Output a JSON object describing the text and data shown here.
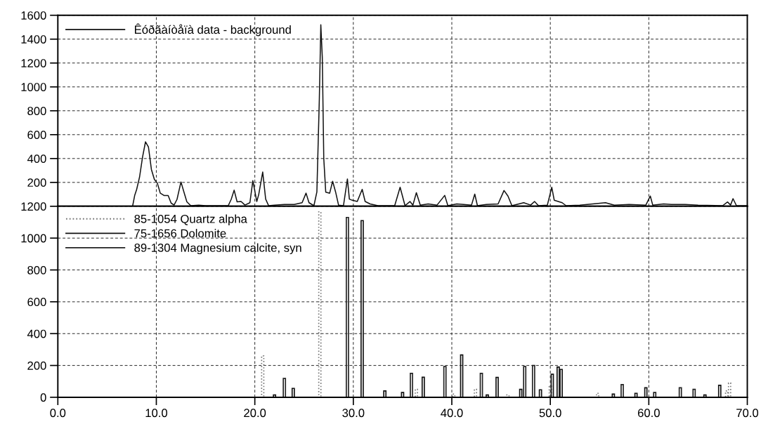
{
  "chart_data": [
    {
      "type": "line",
      "xlim": [
        0,
        70
      ],
      "xticks": [
        {
          "value": 0,
          "label": null
        },
        {
          "value": 10,
          "label": null
        },
        {
          "value": 20,
          "label": null
        },
        {
          "value": 30,
          "label": null
        },
        {
          "value": 40,
          "label": null
        },
        {
          "value": 50,
          "label": null
        },
        {
          "value": 60,
          "label": null
        },
        {
          "value": 70,
          "label": null
        }
      ],
      "ylim": [
        0,
        1600
      ],
      "yticks": [
        200,
        400,
        600,
        800,
        1000,
        1200,
        1400,
        1600
      ],
      "tick_labels": "y",
      "grid": true,
      "legend": "top left",
      "series": [
        {
          "name": "Êóðãàíòåïà data - background",
          "color": "#111111",
          "line_style": "solid",
          "x": [
            7.6,
            7.8,
            8.0,
            8.3,
            8.6,
            8.9,
            9.2,
            9.5,
            9.8,
            10.1,
            10.4,
            10.8,
            11.2,
            11.5,
            11.8,
            12.1,
            12.5,
            12.8,
            13.1,
            13.5,
            14.3,
            15.0,
            17.3,
            17.6,
            17.9,
            18.2,
            18.6,
            19.0,
            19.5,
            19.8,
            20.2,
            20.4,
            20.8,
            21.1,
            21.4,
            22.0,
            23.0,
            24.0,
            24.8,
            25.2,
            25.5,
            26.0,
            26.3,
            26.55,
            26.7,
            26.85,
            27.0,
            27.2,
            27.6,
            27.9,
            28.2,
            28.5,
            29.0,
            29.4,
            29.6,
            29.9,
            30.4,
            30.9,
            31.2,
            31.7,
            32.5,
            34.2,
            34.75,
            35.25,
            35.75,
            36.05,
            36.4,
            36.8,
            37.6,
            38.5,
            39.28,
            39.6,
            40.5,
            41.2,
            42.0,
            42.33,
            42.6,
            43.5,
            44.7,
            45.3,
            45.7,
            46.1,
            47.3,
            48.0,
            48.4,
            48.8,
            49.7,
            50.15,
            50.4,
            51.2,
            51.6,
            53.0,
            55.6,
            56.5,
            58.0,
            59.7,
            60.15,
            60.4,
            61.5,
            62.3,
            63.7,
            65.0,
            67.5,
            68.0,
            68.3,
            68.55,
            68.9,
            70.0
          ],
          "values": [
            5,
            90,
            140,
            246,
            412,
            540,
            496,
            308,
            225,
            194,
            110,
            90,
            90,
            27,
            10,
            58,
            204,
            120,
            37,
            5,
            10,
            5,
            5,
            58,
            135,
            37,
            40,
            10,
            30,
            215,
            40,
            100,
            287,
            60,
            5,
            10,
            15,
            15,
            30,
            110,
            30,
            5,
            120,
            900,
            1520,
            1250,
            400,
            118,
            110,
            209,
            120,
            10,
            5,
            229,
            60,
            50,
            40,
            142,
            40,
            20,
            5,
            5,
            159,
            5,
            40,
            10,
            114,
            10,
            20,
            10,
            91,
            5,
            20,
            15,
            10,
            102,
            5,
            15,
            20,
            132,
            86,
            5,
            30,
            10,
            40,
            5,
            10,
            159,
            50,
            30,
            5,
            10,
            30,
            10,
            15,
            10,
            86,
            10,
            20,
            15,
            15,
            10,
            5,
            36,
            10,
            64,
            5,
            5
          ]
        }
      ]
    },
    {
      "type": "bar",
      "xlim": [
        0,
        70
      ],
      "xticks": [
        {
          "value": 0,
          "label": "0.0"
        },
        {
          "value": 10,
          "label": "10.0"
        },
        {
          "value": 20,
          "label": "20.0"
        },
        {
          "value": 30,
          "label": "30.0"
        },
        {
          "value": 40,
          "label": "40.0"
        },
        {
          "value": 50,
          "label": "50.0"
        },
        {
          "value": 60,
          "label": "60.0"
        },
        {
          "value": 70,
          "label": "70.0"
        }
      ],
      "ylim": [
        0,
        1200
      ],
      "yticks": [
        0,
        200,
        400,
        600,
        800,
        1000,
        1200
      ],
      "grid": true,
      "legend": "top left",
      "series": [
        {
          "name": "85-1054 Quartz alpha",
          "color": "#777777",
          "line_style": "dotted",
          "x": [
            20.8,
            26.6,
            36.4,
            40.2,
            42.4,
            45.7,
            50.0,
            54.8,
            67.9,
            68.2
          ],
          "values": [
            260,
            1165,
            50,
            20,
            50,
            15,
            70,
            25,
            40,
            90
          ]
        },
        {
          "name": "75-1656 Dolomite",
          "color": "#111111",
          "line_style": "solid",
          "x": [
            22.0,
            23.9,
            30.9,
            33.2,
            35.0,
            37.1,
            41.0,
            43.6,
            44.6,
            47.0,
            49.0,
            50.2,
            50.8,
            51.1,
            56.4,
            58.7,
            59.7,
            65.7,
            67.2
          ],
          "values": [
            15,
            56,
            1110,
            40,
            30,
            126,
            266,
            15,
            125,
            50,
            47,
            145,
            190,
            175,
            20,
            25,
            60,
            15,
            75
          ]
        },
        {
          "name": "89-1304 Magnesium calcite, syn",
          "color": "#222222",
          "line_style": "solid",
          "x": [
            23.0,
            29.4,
            35.9,
            39.3,
            43.0,
            47.4,
            48.3,
            57.3,
            60.6,
            63.2,
            64.6
          ],
          "values": [
            118,
            1130,
            150,
            193,
            150,
            193,
            200,
            80,
            30,
            60,
            50
          ]
        }
      ]
    }
  ]
}
